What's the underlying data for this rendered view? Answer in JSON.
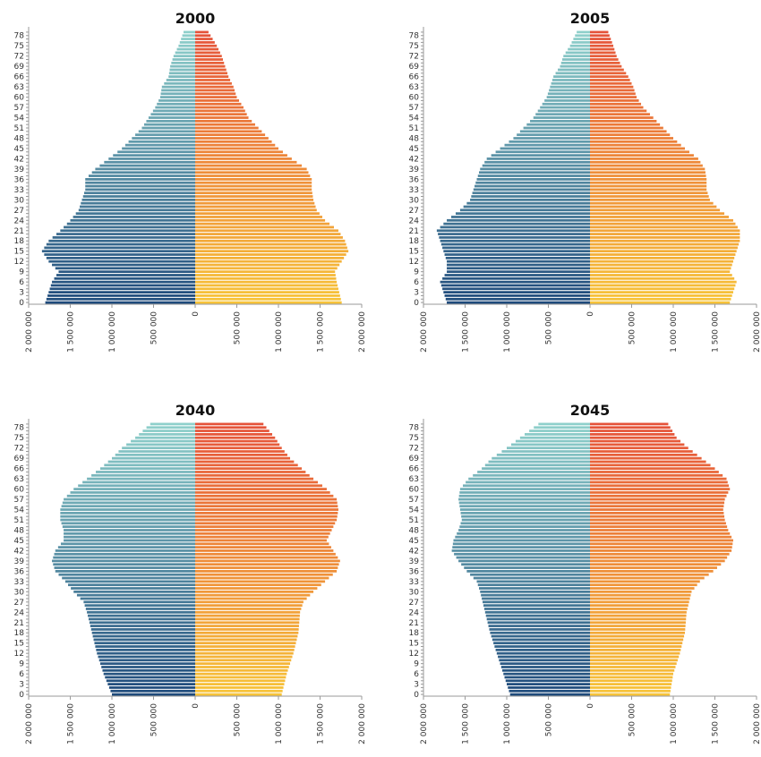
{
  "chart_data": [
    {
      "type": "bar",
      "subtype": "population-pyramid",
      "title": "2000",
      "age_tick_labels": [
        "0",
        "3",
        "6",
        "9",
        "12",
        "15",
        "18",
        "21",
        "24",
        "27",
        "30",
        "33",
        "36",
        "39",
        "42",
        "45",
        "48",
        "51",
        "54",
        "57",
        "60",
        "63",
        "66",
        "69",
        "72",
        "75",
        "78"
      ],
      "x_tick_labels": [
        "2 000 000",
        "1 500 000",
        "1 000 000",
        "500 000",
        "0",
        "500 000",
        "1 000 000",
        "1 500 000",
        "2 000 000"
      ],
      "xlim": [
        -2000000,
        2000000
      ],
      "age_range": [
        0,
        79
      ],
      "left": {
        "profile": [
          [
            0,
            1800000
          ],
          [
            6,
            1720000
          ],
          [
            9,
            1640000
          ],
          [
            12,
            1760000
          ],
          [
            15,
            1840000
          ],
          [
            18,
            1760000
          ],
          [
            21,
            1620000
          ],
          [
            24,
            1500000
          ],
          [
            27,
            1400000
          ],
          [
            30,
            1360000
          ],
          [
            33,
            1320000
          ],
          [
            36,
            1320000
          ],
          [
            39,
            1200000
          ],
          [
            42,
            1040000
          ],
          [
            45,
            880000
          ],
          [
            48,
            760000
          ],
          [
            51,
            640000
          ],
          [
            54,
            560000
          ],
          [
            57,
            480000
          ],
          [
            60,
            420000
          ],
          [
            63,
            400000
          ],
          [
            66,
            320000
          ],
          [
            69,
            300000
          ],
          [
            72,
            260000
          ],
          [
            75,
            200000
          ],
          [
            79,
            140000
          ]
        ]
      },
      "right": {
        "profile": [
          [
            0,
            1760000
          ],
          [
            6,
            1700000
          ],
          [
            9,
            1680000
          ],
          [
            12,
            1760000
          ],
          [
            15,
            1840000
          ],
          [
            18,
            1800000
          ],
          [
            21,
            1720000
          ],
          [
            24,
            1560000
          ],
          [
            27,
            1460000
          ],
          [
            30,
            1420000
          ],
          [
            33,
            1400000
          ],
          [
            36,
            1400000
          ],
          [
            39,
            1340000
          ],
          [
            42,
            1160000
          ],
          [
            45,
            1000000
          ],
          [
            48,
            880000
          ],
          [
            51,
            760000
          ],
          [
            54,
            640000
          ],
          [
            57,
            580000
          ],
          [
            60,
            500000
          ],
          [
            63,
            460000
          ],
          [
            66,
            400000
          ],
          [
            69,
            360000
          ],
          [
            72,
            320000
          ],
          [
            75,
            260000
          ],
          [
            79,
            160000
          ]
        ]
      },
      "colors": {
        "left_old": "#8fd0cb",
        "left_young": "#1e4a7b",
        "right_old": "#e5533a",
        "right_young": "#f7c338"
      }
    },
    {
      "type": "bar",
      "subtype": "population-pyramid",
      "title": "2005",
      "age_tick_labels": [
        "0",
        "3",
        "6",
        "9",
        "12",
        "15",
        "18",
        "21",
        "24",
        "27",
        "30",
        "33",
        "36",
        "39",
        "42",
        "45",
        "48",
        "51",
        "54",
        "57",
        "60",
        "63",
        "66",
        "69",
        "72",
        "75",
        "78"
      ],
      "x_tick_labels": [
        "2 000 000",
        "1 500 000",
        "1 000 000",
        "500 000",
        "0",
        "500 000",
        "1 000 000",
        "1 500 000",
        "2 000 000"
      ],
      "xlim": [
        -2000000,
        2000000
      ],
      "age_range": [
        0,
        79
      ],
      "left": {
        "profile": [
          [
            0,
            1720000
          ],
          [
            3,
            1760000
          ],
          [
            6,
            1800000
          ],
          [
            9,
            1720000
          ],
          [
            12,
            1720000
          ],
          [
            15,
            1760000
          ],
          [
            18,
            1800000
          ],
          [
            21,
            1840000
          ],
          [
            24,
            1720000
          ],
          [
            27,
            1560000
          ],
          [
            30,
            1440000
          ],
          [
            33,
            1400000
          ],
          [
            36,
            1360000
          ],
          [
            39,
            1320000
          ],
          [
            42,
            1240000
          ],
          [
            45,
            1080000
          ],
          [
            48,
            920000
          ],
          [
            51,
            800000
          ],
          [
            54,
            680000
          ],
          [
            57,
            600000
          ],
          [
            60,
            520000
          ],
          [
            63,
            480000
          ],
          [
            66,
            440000
          ],
          [
            69,
            360000
          ],
          [
            72,
            320000
          ],
          [
            75,
            240000
          ],
          [
            79,
            160000
          ]
        ]
      },
      "right": {
        "profile": [
          [
            0,
            1680000
          ],
          [
            3,
            1720000
          ],
          [
            6,
            1760000
          ],
          [
            9,
            1680000
          ],
          [
            12,
            1720000
          ],
          [
            15,
            1760000
          ],
          [
            18,
            1800000
          ],
          [
            21,
            1800000
          ],
          [
            24,
            1720000
          ],
          [
            27,
            1560000
          ],
          [
            30,
            1440000
          ],
          [
            33,
            1400000
          ],
          [
            36,
            1400000
          ],
          [
            39,
            1380000
          ],
          [
            42,
            1300000
          ],
          [
            45,
            1140000
          ],
          [
            48,
            1000000
          ],
          [
            51,
            880000
          ],
          [
            54,
            760000
          ],
          [
            57,
            640000
          ],
          [
            60,
            560000
          ],
          [
            63,
            520000
          ],
          [
            66,
            460000
          ],
          [
            69,
            380000
          ],
          [
            72,
            320000
          ],
          [
            75,
            280000
          ],
          [
            79,
            220000
          ]
        ]
      },
      "colors": {
        "left_old": "#8fd0cb",
        "left_young": "#1e4a7b",
        "right_old": "#e5533a",
        "right_young": "#f7c338"
      }
    },
    {
      "type": "bar",
      "subtype": "population-pyramid",
      "title": "2040",
      "age_tick_labels": [
        "0",
        "3",
        "6",
        "9",
        "12",
        "15",
        "18",
        "21",
        "24",
        "27",
        "30",
        "33",
        "36",
        "39",
        "42",
        "45",
        "48",
        "51",
        "54",
        "57",
        "60",
        "63",
        "66",
        "69",
        "72",
        "75",
        "78"
      ],
      "x_tick_labels": [
        "2 000 000",
        "1 500 000",
        "1 000 000",
        "500 000",
        "0",
        "500 000",
        "1 000 000",
        "1 500 000",
        "2 000 000"
      ],
      "xlim": [
        -2000000,
        2000000
      ],
      "age_range": [
        0,
        79
      ],
      "left": {
        "profile": [
          [
            0,
            1000000
          ],
          [
            6,
            1100000
          ],
          [
            12,
            1180000
          ],
          [
            18,
            1240000
          ],
          [
            24,
            1300000
          ],
          [
            27,
            1340000
          ],
          [
            30,
            1460000
          ],
          [
            33,
            1560000
          ],
          [
            36,
            1680000
          ],
          [
            39,
            1720000
          ],
          [
            42,
            1680000
          ],
          [
            45,
            1580000
          ],
          [
            48,
            1580000
          ],
          [
            51,
            1620000
          ],
          [
            54,
            1620000
          ],
          [
            57,
            1580000
          ],
          [
            60,
            1460000
          ],
          [
            63,
            1300000
          ],
          [
            66,
            1140000
          ],
          [
            69,
            1000000
          ],
          [
            72,
            880000
          ],
          [
            75,
            720000
          ],
          [
            79,
            540000
          ]
        ]
      },
      "right": {
        "profile": [
          [
            0,
            1040000
          ],
          [
            6,
            1100000
          ],
          [
            12,
            1180000
          ],
          [
            18,
            1240000
          ],
          [
            24,
            1260000
          ],
          [
            27,
            1300000
          ],
          [
            30,
            1420000
          ],
          [
            33,
            1560000
          ],
          [
            36,
            1700000
          ],
          [
            39,
            1740000
          ],
          [
            42,
            1660000
          ],
          [
            45,
            1580000
          ],
          [
            48,
            1640000
          ],
          [
            51,
            1700000
          ],
          [
            54,
            1720000
          ],
          [
            57,
            1700000
          ],
          [
            60,
            1580000
          ],
          [
            63,
            1420000
          ],
          [
            66,
            1280000
          ],
          [
            69,
            1140000
          ],
          [
            72,
            1040000
          ],
          [
            75,
            960000
          ],
          [
            79,
            820000
          ]
        ]
      },
      "colors": {
        "left_old": "#8fd0cb",
        "left_young": "#1e4a7b",
        "right_old": "#e5533a",
        "right_young": "#f7c338"
      }
    },
    {
      "type": "bar",
      "subtype": "population-pyramid",
      "title": "2045",
      "age_tick_labels": [
        "0",
        "3",
        "6",
        "9",
        "12",
        "15",
        "18",
        "21",
        "24",
        "27",
        "30",
        "33",
        "36",
        "39",
        "42",
        "45",
        "48",
        "51",
        "54",
        "57",
        "60",
        "63",
        "66",
        "69",
        "72",
        "75",
        "78"
      ],
      "x_tick_labels": [
        "2 000 000",
        "1 500 000",
        "1 000 000",
        "500 000",
        "0",
        "500 000",
        "1 000 000",
        "1 500 000",
        "2 000 000"
      ],
      "xlim": [
        -2000000,
        2000000
      ],
      "age_range": [
        0,
        79
      ],
      "left": {
        "profile": [
          [
            0,
            960000
          ],
          [
            6,
            1040000
          ],
          [
            12,
            1120000
          ],
          [
            18,
            1200000
          ],
          [
            24,
            1260000
          ],
          [
            30,
            1320000
          ],
          [
            33,
            1360000
          ],
          [
            36,
            1480000
          ],
          [
            39,
            1580000
          ],
          [
            42,
            1660000
          ],
          [
            45,
            1640000
          ],
          [
            48,
            1580000
          ],
          [
            51,
            1540000
          ],
          [
            54,
            1560000
          ],
          [
            57,
            1580000
          ],
          [
            60,
            1560000
          ],
          [
            63,
            1460000
          ],
          [
            66,
            1300000
          ],
          [
            69,
            1180000
          ],
          [
            72,
            1000000
          ],
          [
            75,
            840000
          ],
          [
            79,
            620000
          ]
        ]
      },
      "right": {
        "profile": [
          [
            0,
            960000
          ],
          [
            6,
            1000000
          ],
          [
            12,
            1080000
          ],
          [
            18,
            1140000
          ],
          [
            24,
            1160000
          ],
          [
            30,
            1220000
          ],
          [
            33,
            1320000
          ],
          [
            36,
            1480000
          ],
          [
            39,
            1620000
          ],
          [
            42,
            1700000
          ],
          [
            45,
            1720000
          ],
          [
            48,
            1660000
          ],
          [
            51,
            1620000
          ],
          [
            54,
            1600000
          ],
          [
            57,
            1620000
          ],
          [
            60,
            1680000
          ],
          [
            63,
            1640000
          ],
          [
            66,
            1500000
          ],
          [
            69,
            1340000
          ],
          [
            72,
            1180000
          ],
          [
            75,
            1040000
          ],
          [
            79,
            940000
          ]
        ]
      },
      "colors": {
        "left_old": "#8fd0cb",
        "left_young": "#1e4a7b",
        "right_old": "#e5533a",
        "right_young": "#f7c338"
      }
    }
  ]
}
